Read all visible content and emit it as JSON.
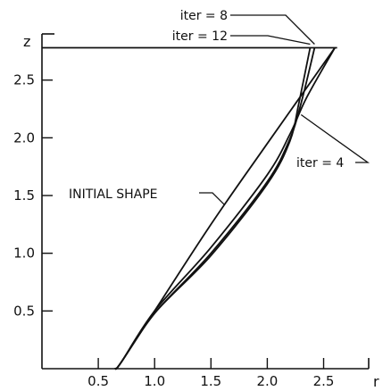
{
  "chart_data": {
    "type": "line",
    "xlabel": "r",
    "ylabel": "z",
    "xlim": [
      0,
      2.9
    ],
    "ylim": [
      0,
      2.9
    ],
    "x_ticks": [
      0.5,
      1.0,
      1.5,
      2.0,
      2.5
    ],
    "x_tick_labels": [
      "0.5",
      "1.0",
      "1.5",
      "2.0",
      "2.5"
    ],
    "y_ticks": [
      0.5,
      1.0,
      1.5,
      2.0,
      2.5
    ],
    "y_tick_labels": [
      "0.5",
      "1.0",
      "1.5",
      "2.0",
      "2.5"
    ],
    "grid": false,
    "series": [
      {
        "name": "INITIAL SHAPE",
        "points": [
          [
            0.65,
            0.0
          ],
          [
            0.7,
            0.05
          ],
          [
            1.0,
            0.5
          ],
          [
            1.5,
            1.25
          ],
          [
            2.0,
            1.95
          ],
          [
            2.6,
            2.78
          ]
        ]
      },
      {
        "name": "iter = 4",
        "points": [
          [
            0.65,
            0.0
          ],
          [
            0.7,
            0.05
          ],
          [
            1.0,
            0.5
          ],
          [
            1.5,
            1.05
          ],
          [
            2.0,
            1.68
          ],
          [
            2.2,
            2.03
          ],
          [
            2.35,
            2.35
          ],
          [
            2.6,
            2.78
          ]
        ]
      },
      {
        "name": "iter = 8",
        "points": [
          [
            0.65,
            0.0
          ],
          [
            0.7,
            0.05
          ],
          [
            1.0,
            0.48
          ],
          [
            1.5,
            1.0
          ],
          [
            2.0,
            1.62
          ],
          [
            2.2,
            1.99
          ],
          [
            2.3,
            2.3
          ],
          [
            2.42,
            2.78
          ]
        ]
      },
      {
        "name": "iter = 12",
        "points": [
          [
            0.65,
            0.0
          ],
          [
            0.7,
            0.05
          ],
          [
            1.0,
            0.48
          ],
          [
            1.5,
            0.98
          ],
          [
            2.0,
            1.6
          ],
          [
            2.2,
            1.97
          ],
          [
            2.28,
            2.3
          ],
          [
            2.38,
            2.78
          ]
        ]
      }
    ],
    "top_boundary": {
      "z": 2.78,
      "r_range": [
        0,
        2.62
      ]
    },
    "annotations": [
      {
        "text": "iter = 8",
        "series": "iter = 8",
        "target": [
          2.42,
          2.78
        ]
      },
      {
        "text": "iter = 12",
        "series": "iter = 12",
        "target": [
          2.38,
          2.78
        ]
      },
      {
        "text": "iter = 4",
        "series": "iter = 4",
        "target": [
          2.3,
          2.2
        ]
      },
      {
        "text": "INITIAL SHAPE",
        "series": "INITIAL SHAPE",
        "target": [
          1.62,
          1.42
        ]
      }
    ]
  }
}
